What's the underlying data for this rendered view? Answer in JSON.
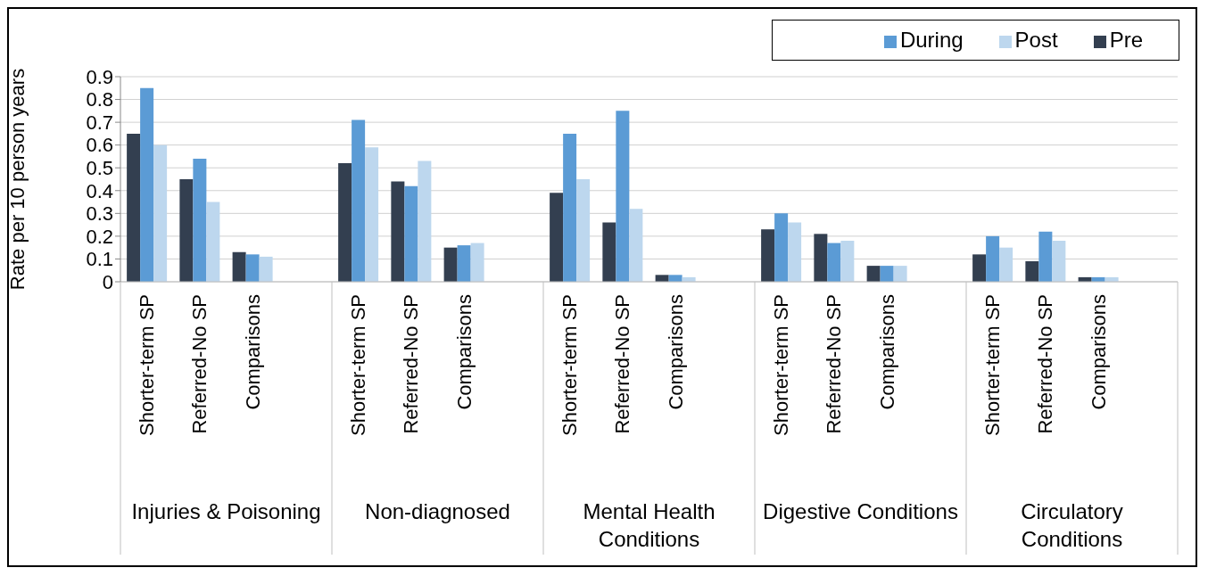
{
  "chart_data": {
    "type": "bar",
    "ylabel": "Rate per 10 person years",
    "categories": [
      "Shorter-term SP",
      "Referred-No SP",
      "Comparisons",
      null,
      "Shorter-term SP",
      "Referred-No SP",
      "Comparisons",
      null,
      "Shorter-term SP",
      "Referred-No SP",
      "Comparisons",
      null,
      "Shorter-term SP",
      "Referred-No SP",
      "Comparisons",
      null,
      "Shorter-term SP",
      "Referred-No SP",
      "Comparisons",
      null
    ],
    "series": [
      {
        "name": "Pre",
        "color": "#333f50",
        "values": [
          0.65,
          0.45,
          0.13,
          null,
          0.52,
          0.44,
          0.15,
          null,
          0.39,
          0.26,
          0.03,
          null,
          0.23,
          0.21,
          0.07,
          null,
          0.12,
          0.09,
          0.02,
          null
        ]
      },
      {
        "name": "During",
        "color": "#5b9bd5",
        "values": [
          0.85,
          0.54,
          0.12,
          null,
          0.71,
          0.42,
          0.16,
          null,
          0.65,
          0.75,
          0.03,
          null,
          0.3,
          0.17,
          0.07,
          null,
          0.2,
          0.22,
          0.02,
          null
        ]
      },
      {
        "name": "Post",
        "color": "#bdd7ee",
        "values": [
          0.6,
          0.35,
          0.11,
          null,
          0.59,
          0.53,
          0.17,
          null,
          0.45,
          0.32,
          0.02,
          null,
          0.26,
          0.18,
          0.07,
          null,
          0.15,
          0.18,
          0.02,
          null
        ]
      }
    ],
    "annotations": [
      "Injuries & Poisoning",
      "Non-diagnosed",
      "Mental Health Conditions",
      "Digestive Conditions",
      "Circulatory Conditions"
    ],
    "ylim": [
      0,
      0.9
    ],
    "yticks": [
      0,
      0.1,
      0.2,
      0.3,
      0.4,
      0.5,
      0.6,
      0.7,
      0.8,
      0.9
    ],
    "grid": "y",
    "legend": "top right"
  }
}
